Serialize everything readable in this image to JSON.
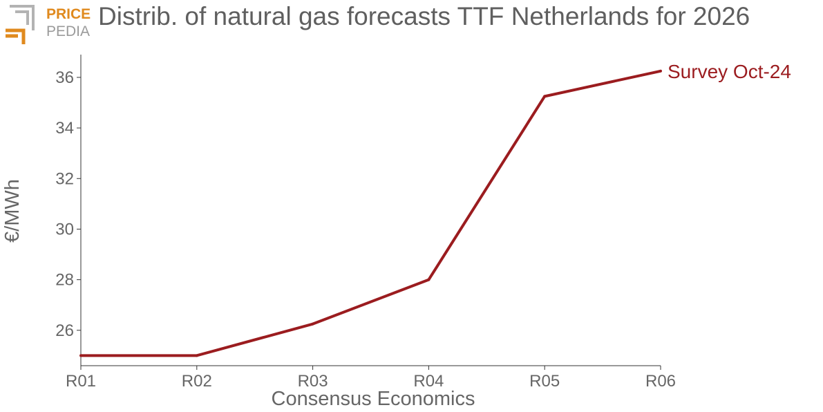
{
  "brand": {
    "line1": "PRICE",
    "line2": "PEDIA"
  },
  "colors": {
    "brand_orange": "#e08a1e",
    "brand_gray": "#9a9a9a",
    "text": "#666666",
    "series": "#9b1c1f"
  },
  "chart_data": {
    "type": "line",
    "title": "Distrib. of natural gas forecasts TTF Netherlands for 2026",
    "xlabel": "Consensus Economics",
    "ylabel": "€/MWh",
    "categories": [
      "R01",
      "R02",
      "R03",
      "R04",
      "R05",
      "R06"
    ],
    "series": [
      {
        "name": "Survey Oct-24",
        "color": "#9b1c1f",
        "values": [
          25.0,
          25.0,
          26.25,
          28.0,
          35.25,
          36.25
        ]
      }
    ],
    "yticks": [
      26,
      28,
      30,
      32,
      34,
      36
    ],
    "ylim": [
      24.6,
      36.9
    ],
    "grid": false
  }
}
